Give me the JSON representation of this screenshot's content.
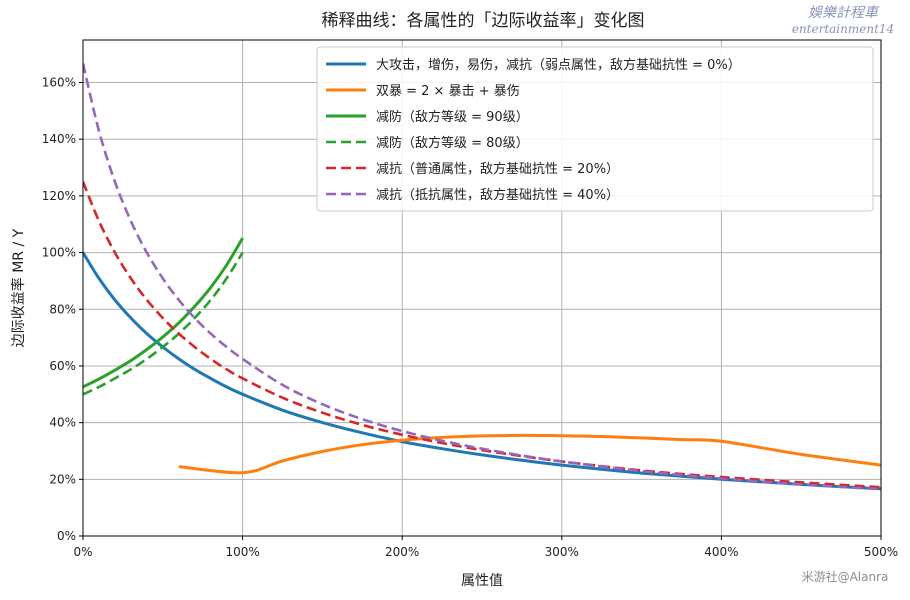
{
  "chart_data": {
    "type": "line",
    "title": "稀释曲线：各属性的「边际收益率」变化图",
    "xlabel": "属性值",
    "ylabel": "边际收益率 MR / Y",
    "xlim": [
      0,
      500
    ],
    "ylim": [
      0,
      175
    ],
    "x_ticks": [
      0,
      100,
      200,
      300,
      400,
      500
    ],
    "x_tick_labels": [
      "0%",
      "100%",
      "200%",
      "300%",
      "400%",
      "500%"
    ],
    "y_ticks": [
      0,
      20,
      40,
      60,
      80,
      100,
      120,
      140,
      160
    ],
    "y_tick_labels": [
      "0%",
      "20%",
      "40%",
      "60%",
      "80%",
      "100%",
      "120%",
      "140%",
      "160%"
    ],
    "grid": true,
    "legend_position": "top-right",
    "series": [
      {
        "name": "大攻击，增伤，易伤，减抗（弱点属性，敌方基础抗性 = 0%）",
        "color": "#1f77b4",
        "style": "solid",
        "x": [
          0,
          10,
          20,
          30,
          40,
          50,
          60,
          70,
          80,
          90,
          100,
          125,
          150,
          175,
          200,
          225,
          250,
          275,
          300,
          350,
          400,
          450,
          500
        ],
        "y": [
          100,
          90.9,
          83.3,
          76.9,
          71.4,
          66.7,
          62.5,
          58.8,
          55.6,
          52.6,
          50,
          44.4,
          40,
          36.4,
          33.3,
          30.8,
          28.6,
          26.7,
          25,
          22.2,
          20,
          18.2,
          16.7
        ]
      },
      {
        "name": "双暴 = 2 × 暴击 + 暴伤",
        "color": "#ff7f0e",
        "style": "solid",
        "x": [
          60,
          100,
          125,
          150,
          175,
          200,
          225,
          250,
          275,
          300,
          325,
          350,
          375,
          400,
          450,
          500
        ],
        "y": [
          24.5,
          22.3,
          26.5,
          29.8,
          32.2,
          33.8,
          34.8,
          35.3,
          35.5,
          35.4,
          35.1,
          34.6,
          34,
          33.4,
          28.8,
          25
        ]
      },
      {
        "name": "减防（敌方等级 = 90级）",
        "color": "#2ca02c",
        "style": "solid",
        "x": [
          0,
          10,
          20,
          30,
          40,
          50,
          60,
          70,
          80,
          90,
          100
        ],
        "y": [
          52.6,
          55.4,
          58.5,
          61.9,
          65.8,
          70.2,
          75.2,
          81,
          87.7,
          95.6,
          105.1
        ]
      },
      {
        "name": "减防（敌方等级 = 80级）",
        "color": "#2ca02c",
        "style": "dashed",
        "x": [
          0,
          10,
          20,
          30,
          40,
          50,
          60,
          70,
          80,
          90,
          100
        ],
        "y": [
          50,
          52.6,
          55.6,
          58.8,
          62.5,
          66.7,
          71.4,
          76.9,
          83.3,
          90.9,
          100
        ]
      },
      {
        "name": "减抗（普通属性，敌方基础抗性 = 20%）",
        "color": "#d62728",
        "style": "dashed",
        "x": [
          0,
          10,
          20,
          30,
          40,
          50,
          60,
          70,
          80,
          90,
          100,
          125,
          150,
          175,
          200,
          225,
          250,
          275,
          300,
          350,
          400,
          450,
          500
        ],
        "y": [
          125,
          111.1,
          100,
          90.9,
          83.3,
          76.9,
          71.4,
          66.7,
          62.5,
          58.8,
          55.6,
          48.8,
          43.5,
          39.2,
          35.7,
          32.8,
          30.3,
          28.2,
          26.3,
          23.1,
          20.8,
          18.9,
          17.2
        ]
      },
      {
        "name": "减抗（抵抗属性，敌方基础抗性 = 40%）",
        "color": "#9467bd",
        "style": "dashed",
        "x": [
          0,
          10,
          20,
          30,
          40,
          50,
          60,
          70,
          80,
          90,
          100,
          125,
          150,
          175,
          200,
          225,
          250,
          275,
          300,
          350,
          400,
          450,
          500
        ],
        "y": [
          166.7,
          142.9,
          125,
          111.1,
          100,
          90.9,
          83.3,
          76.9,
          71.4,
          66.7,
          62.5,
          53.3,
          46.5,
          41.2,
          37,
          33.6,
          30.8,
          28.4,
          26.3,
          22.9,
          20.3,
          18.2,
          16.5
        ]
      }
    ]
  },
  "watermark": {
    "top_line1": "娛樂計程車",
    "top_line2": "entertainment14",
    "bottom": "米游社@Alanra"
  }
}
